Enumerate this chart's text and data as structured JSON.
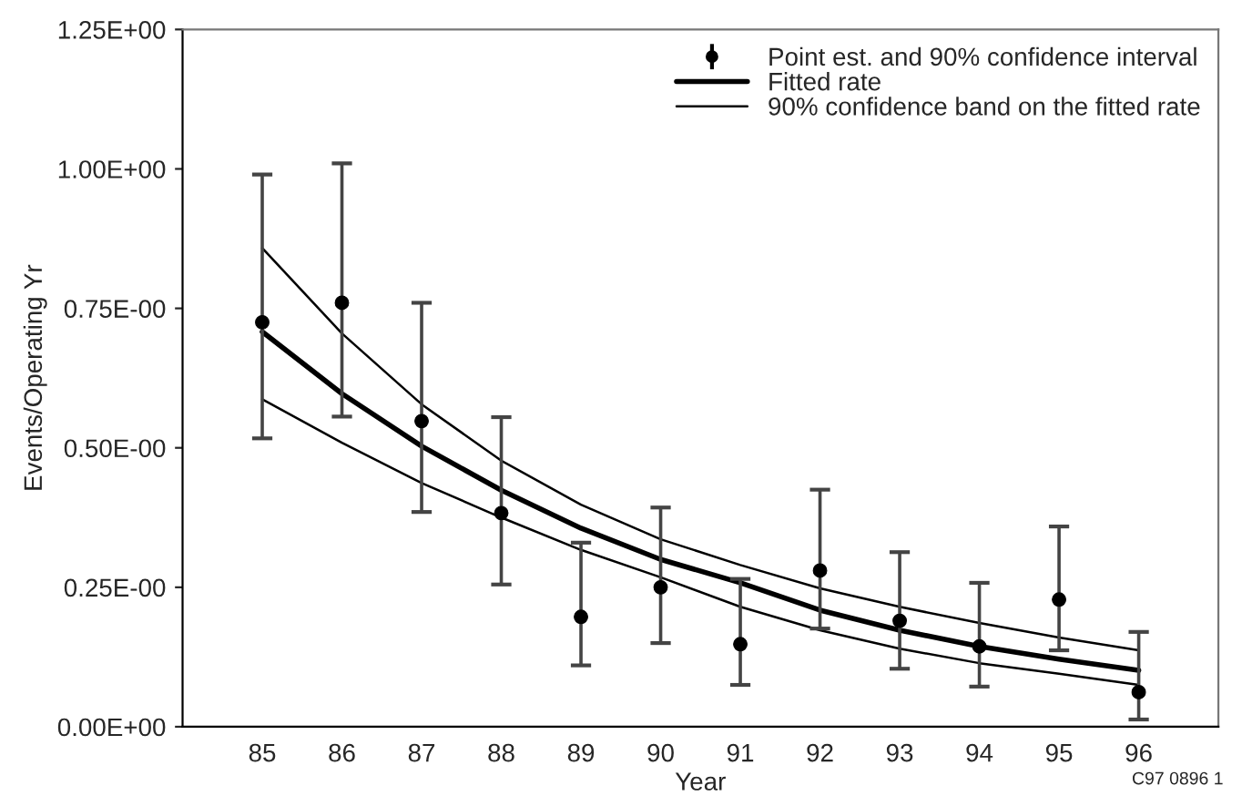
{
  "chart_data": {
    "type": "line",
    "xlabel": "Year",
    "ylabel": "Events/Operating Yr",
    "annotations": [
      "C97 0896 1"
    ],
    "x": [
      85,
      86,
      87,
      88,
      89,
      90,
      91,
      92,
      93,
      94,
      95,
      96
    ],
    "xlim": [
      84,
      97
    ],
    "xticks": [
      85,
      86,
      87,
      88,
      89,
      90,
      91,
      92,
      93,
      94,
      95,
      96
    ],
    "ylim": [
      0,
      1.25
    ],
    "yticks": [
      {
        "value": 0,
        "label": "0.00E+00"
      },
      {
        "value": 0.25,
        "label": "0.25E-00"
      },
      {
        "value": 0.5,
        "label": "0.50E-00"
      },
      {
        "value": 0.75,
        "label": "0.75E-00"
      },
      {
        "value": 1.0,
        "label": "1.00E+00"
      },
      {
        "value": 1.25,
        "label": "1.25E+00"
      }
    ],
    "grid": false,
    "legend": "top right",
    "series": [
      {
        "name": "Point est. and 90% confidence interval",
        "type": "scatter",
        "marker": "circle",
        "color": "#000000",
        "values": [
          0.725,
          0.76,
          0.548,
          0.383,
          0.197,
          0.25,
          0.148,
          0.28,
          0.19,
          0.144,
          0.228,
          0.062
        ],
        "errors": [
          [
            0.517,
            0.99
          ],
          [
            0.556,
            1.01
          ],
          [
            0.385,
            0.76
          ],
          [
            0.255,
            0.555
          ],
          [
            0.11,
            0.33
          ],
          [
            0.15,
            0.393
          ],
          [
            0.075,
            0.265
          ],
          [
            0.176,
            0.425
          ],
          [
            0.104,
            0.313
          ],
          [
            0.072,
            0.258
          ],
          [
            0.137,
            0.359
          ],
          [
            0.013,
            0.17
          ]
        ]
      },
      {
        "name": "Fitted rate",
        "color": "#000000",
        "values": [
          0.708,
          0.597,
          0.503,
          0.424,
          0.356,
          0.3,
          0.258,
          0.209,
          0.173,
          0.144,
          0.121,
          0.101
        ]
      },
      {
        "name": "90% confidence band on the fitted rate",
        "color": "#000000",
        "values": [
          0.858,
          0.705,
          0.578,
          0.477,
          0.398,
          0.336,
          0.29,
          0.248,
          0.215,
          0.186,
          0.16,
          0.137
        ]
      },
      {
        "color": "#000000",
        "values": [
          0.587,
          0.509,
          0.437,
          0.375,
          0.317,
          0.268,
          0.215,
          0.173,
          0.14,
          0.114,
          0.095,
          0.075
        ]
      }
    ]
  }
}
